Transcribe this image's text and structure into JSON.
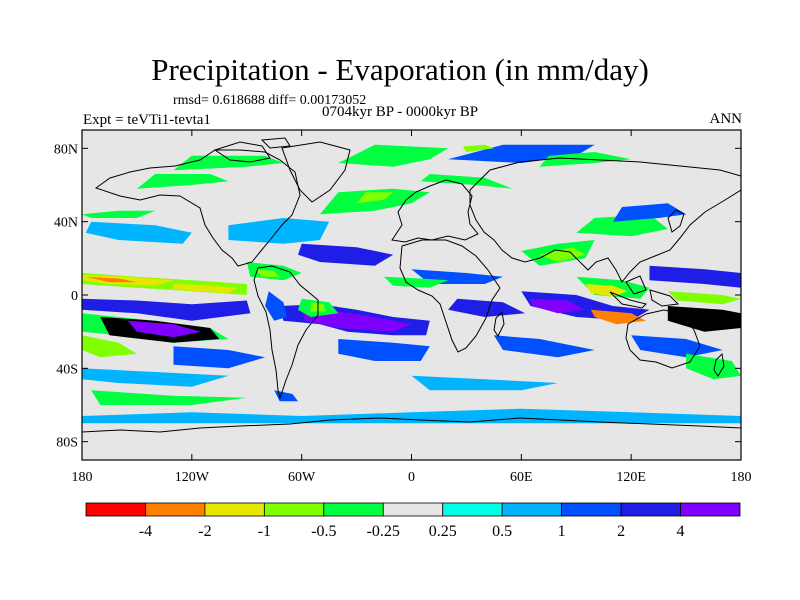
{
  "header": {
    "title": "Precipitation - Evaporation (in mm/day)",
    "stats": "rmsd= 0.618688 diff= 0.00173052",
    "period": "0704kyr BP - 0000kyr BP",
    "expt": "Expt = teVTi1-tevta1",
    "season": "ANN"
  },
  "map": {
    "lon_range": [
      -180,
      180
    ],
    "lat_range": [
      -90,
      90
    ],
    "land_line_color": "#000000",
    "background_color": "#e6e6e6",
    "lat_ticks": [
      {
        "value": 80,
        "label": "80N"
      },
      {
        "value": 40,
        "label": "40N"
      },
      {
        "value": 0,
        "label": "0"
      },
      {
        "value": -40,
        "label": "40S"
      },
      {
        "value": -80,
        "label": "80S"
      }
    ],
    "lon_ticks": [
      {
        "value": -180,
        "label": "180"
      },
      {
        "value": -120,
        "label": "120W"
      },
      {
        "value": -60,
        "label": "60W"
      },
      {
        "value": 0,
        "label": "0"
      },
      {
        "value": 60,
        "label": "60E"
      },
      {
        "value": 120,
        "label": "120E"
      },
      {
        "value": 180,
        "label": "180"
      }
    ],
    "fields": [
      {
        "bin": 3,
        "coords": [
          -180,
          12,
          -150,
          10,
          -120,
          8,
          -90,
          6,
          -90,
          0,
          -120,
          2,
          -150,
          4,
          -180,
          6
        ]
      },
      {
        "bin": 2,
        "coords": [
          -180,
          11,
          -155,
          10,
          -130,
          8,
          -140,
          5,
          -165,
          6,
          -180,
          8
        ]
      },
      {
        "bin": 1,
        "coords": [
          -178,
          10,
          -160,
          9,
          -150,
          7,
          -165,
          7
        ]
      },
      {
        "bin": 2,
        "coords": [
          -130,
          6,
          -110,
          5,
          -95,
          4,
          -100,
          1,
          -115,
          2,
          -130,
          3
        ]
      },
      {
        "bin": 9,
        "coords": [
          -180,
          -2,
          -150,
          -3,
          -120,
          -5,
          -90,
          -3,
          -88,
          -10,
          -120,
          -14,
          -150,
          -10,
          -180,
          -8
        ]
      },
      {
        "bin": 4,
        "coords": [
          -180,
          -10,
          -140,
          -14,
          -110,
          -18,
          -100,
          -24,
          -130,
          -26,
          -160,
          -22,
          -180,
          -20
        ]
      },
      {
        "bin": 11,
        "coords": [
          -170,
          -12,
          -140,
          -14,
          -110,
          -18,
          -105,
          -24,
          -130,
          -26,
          -165,
          -22
        ]
      },
      {
        "bin": 10,
        "coords": [
          -155,
          -14,
          -130,
          -16,
          -115,
          -20,
          -130,
          -23,
          -150,
          -20
        ]
      },
      {
        "bin": 3,
        "coords": [
          -180,
          -22,
          -160,
          -26,
          -150,
          -32,
          -170,
          -34,
          -180,
          -30
        ]
      },
      {
        "bin": 8,
        "coords": [
          -130,
          -28,
          -100,
          -30,
          -80,
          -34,
          -100,
          -40,
          -130,
          -38
        ]
      },
      {
        "bin": 7,
        "coords": [
          -180,
          -40,
          -140,
          -42,
          -100,
          -44,
          -120,
          -50,
          -160,
          -48,
          -180,
          -46
        ]
      },
      {
        "bin": 4,
        "coords": [
          -175,
          -52,
          -130,
          -55,
          -90,
          -56,
          -120,
          -60,
          -170,
          -60
        ]
      },
      {
        "bin": 9,
        "coords": [
          -72,
          -6,
          -50,
          -5,
          -30,
          -8,
          -10,
          -12,
          10,
          -14,
          8,
          -22,
          -10,
          -22,
          -35,
          -20,
          -50,
          -16,
          -70,
          -14
        ]
      },
      {
        "bin": 10,
        "coords": [
          -60,
          -8,
          -40,
          -9,
          -20,
          -12,
          0,
          -16,
          -10,
          -20,
          -40,
          -18,
          -58,
          -14
        ]
      },
      {
        "bin": 8,
        "coords": [
          -40,
          -24,
          -10,
          -26,
          10,
          -28,
          5,
          -36,
          -20,
          -36,
          -40,
          -32
        ]
      },
      {
        "bin": 4,
        "coords": [
          -60,
          -2,
          -45,
          -4,
          -40,
          -10,
          -55,
          -12,
          -62,
          -8
        ]
      },
      {
        "bin": 3,
        "coords": [
          -55,
          -4,
          -48,
          -5,
          -47,
          -9,
          -55,
          -9
        ]
      },
      {
        "bin": 8,
        "coords": [
          -78,
          2,
          -70,
          -4,
          -68,
          -12,
          -75,
          -14,
          -80,
          -6
        ]
      },
      {
        "bin": 4,
        "coords": [
          -90,
          18,
          -70,
          16,
          -60,
          12,
          -70,
          8,
          -88,
          10
        ]
      },
      {
        "bin": 3,
        "coords": [
          -85,
          14,
          -75,
          13,
          -72,
          10,
          -82,
          10
        ]
      },
      {
        "bin": 9,
        "coords": [
          -60,
          28,
          -30,
          26,
          -10,
          22,
          -20,
          16,
          -50,
          18,
          -62,
          22
        ]
      },
      {
        "bin": 7,
        "coords": [
          -100,
          30,
          -70,
          28,
          -50,
          30,
          -45,
          40,
          -70,
          42,
          -100,
          38
        ]
      },
      {
        "bin": 4,
        "coords": [
          -50,
          44,
          -20,
          46,
          0,
          50,
          10,
          56,
          -10,
          58,
          -40,
          56
        ]
      },
      {
        "bin": 3,
        "coords": [
          -30,
          50,
          -15,
          52,
          -10,
          56,
          -25,
          56
        ]
      },
      {
        "bin": 4,
        "coords": [
          -150,
          58,
          -120,
          60,
          -100,
          62,
          -110,
          66,
          -140,
          66
        ]
      },
      {
        "bin": 7,
        "coords": [
          -175,
          40,
          -140,
          38,
          -120,
          34,
          -125,
          28,
          -160,
          30,
          -178,
          34
        ]
      },
      {
        "bin": 4,
        "coords": [
          -180,
          44,
          -160,
          46,
          -140,
          46,
          -150,
          42,
          -175,
          42
        ]
      },
      {
        "bin": 4,
        "coords": [
          -130,
          68,
          -90,
          70,
          -70,
          72,
          -80,
          76,
          -120,
          76
        ]
      },
      {
        "bin": 4,
        "coords": [
          -40,
          72,
          -10,
          70,
          10,
          74,
          20,
          80,
          -20,
          82
        ]
      },
      {
        "bin": 8,
        "coords": [
          20,
          74,
          60,
          72,
          90,
          76,
          100,
          82,
          50,
          82
        ]
      },
      {
        "bin": 4,
        "coords": [
          70,
          70,
          100,
          72,
          120,
          74,
          100,
          78,
          75,
          76
        ]
      },
      {
        "bin": 3,
        "coords": [
          30,
          78,
          45,
          80,
          40,
          82,
          28,
          81
        ]
      },
      {
        "bin": 4,
        "coords": [
          5,
          62,
          35,
          60,
          55,
          58,
          40,
          64,
          10,
          66
        ]
      },
      {
        "bin": 8,
        "coords": [
          0,
          14,
          30,
          12,
          50,
          10,
          40,
          6,
          10,
          6
        ]
      },
      {
        "bin": 4,
        "coords": [
          -15,
          10,
          5,
          9,
          20,
          8,
          10,
          4,
          -10,
          5
        ]
      },
      {
        "bin": 9,
        "coords": [
          25,
          -2,
          50,
          -4,
          62,
          -10,
          40,
          -12,
          20,
          -8
        ]
      },
      {
        "bin": 8,
        "coords": [
          45,
          -22,
          70,
          -24,
          100,
          -30,
          80,
          -34,
          50,
          -30
        ]
      },
      {
        "bin": 7,
        "coords": [
          0,
          -44,
          40,
          -46,
          80,
          -48,
          60,
          -52,
          10,
          -52
        ]
      },
      {
        "bin": 4,
        "coords": [
          60,
          24,
          80,
          28,
          100,
          30,
          95,
          20,
          70,
          16
        ]
      },
      {
        "bin": 3,
        "coords": [
          70,
          22,
          88,
          26,
          95,
          22,
          80,
          18
        ]
      },
      {
        "bin": 4,
        "coords": [
          90,
          34,
          120,
          32,
          140,
          36,
          130,
          44,
          100,
          42
        ]
      },
      {
        "bin": 8,
        "coords": [
          110,
          40,
          135,
          42,
          150,
          44,
          140,
          50,
          115,
          48
        ]
      },
      {
        "bin": 9,
        "coords": [
          60,
          2,
          90,
          0,
          110,
          -6,
          130,
          -8,
          120,
          -14,
          90,
          -12,
          65,
          -6
        ]
      },
      {
        "bin": 10,
        "coords": [
          65,
          -2,
          85,
          -3,
          95,
          -8,
          80,
          -10,
          66,
          -6
        ]
      },
      {
        "bin": 11,
        "coords": [
          140,
          -6,
          170,
          -8,
          180,
          -10,
          180,
          -18,
          160,
          -20,
          140,
          -14
        ]
      },
      {
        "bin": 9,
        "coords": [
          130,
          16,
          160,
          14,
          180,
          12,
          180,
          4,
          160,
          6,
          130,
          8
        ]
      },
      {
        "bin": 4,
        "coords": [
          90,
          10,
          115,
          8,
          130,
          4,
          125,
          -2,
          100,
          0
        ]
      },
      {
        "bin": 2,
        "coords": [
          95,
          6,
          110,
          5,
          118,
          2,
          110,
          -1,
          98,
          1
        ]
      },
      {
        "bin": 1,
        "coords": [
          98,
          -8,
          120,
          -10,
          128,
          -14,
          112,
          -16,
          100,
          -12
        ]
      },
      {
        "bin": 3,
        "coords": [
          140,
          2,
          170,
          0,
          180,
          -2,
          170,
          -5,
          145,
          -3
        ]
      },
      {
        "bin": 8,
        "coords": [
          120,
          -22,
          150,
          -24,
          170,
          -30,
          150,
          -34,
          125,
          -30
        ]
      },
      {
        "bin": 4,
        "coords": [
          150,
          -32,
          175,
          -36,
          180,
          -44,
          165,
          -46,
          150,
          -40
        ]
      },
      {
        "bin": 7,
        "coords": [
          -180,
          -66,
          -120,
          -64,
          -60,
          -66,
          0,
          -64,
          60,
          -62,
          120,
          -64,
          180,
          -66,
          180,
          -70,
          -180,
          -70
        ]
      },
      {
        "bin": 8,
        "coords": [
          -75,
          -52,
          -65,
          -54,
          -62,
          -58,
          -72,
          -58
        ]
      }
    ]
  },
  "colorbar": {
    "colors": [
      "#ff0000",
      "#ff8000",
      "#e6e600",
      "#80ff00",
      "#00ff40",
      "#e6e6e6",
      "#00ffe6",
      "#00b4ff",
      "#0050ff",
      "#1e1ee6",
      "#8000ff"
    ],
    "labels": [
      "-4",
      "-2",
      "-1",
      "-0.5",
      "-0.25",
      "0.25",
      "0.5",
      "1",
      "2",
      "4"
    ]
  }
}
